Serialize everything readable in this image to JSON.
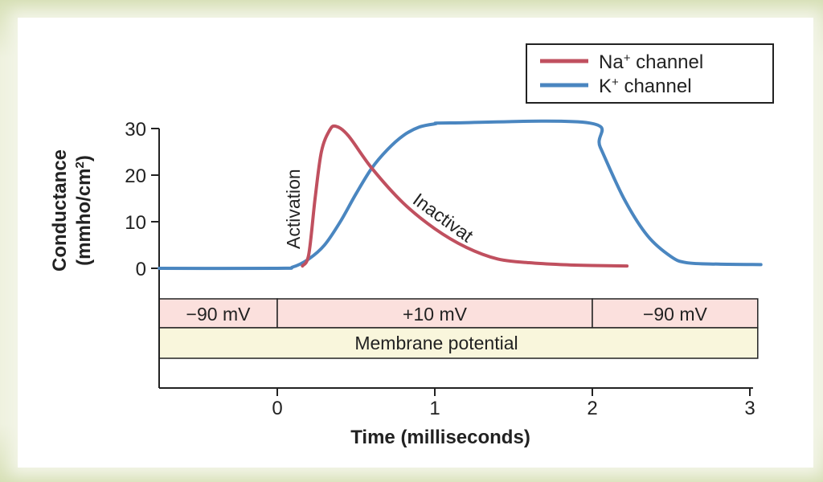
{
  "chart_data": {
    "type": "line",
    "xlabel": "Time (milliseconds)",
    "ylabel": "Conductance",
    "ylabel_units": "(mmho/cm",
    "ylabel_units_sup": "2",
    "ylabel_units_close": ")",
    "xlim": [
      -0.75,
      3.1
    ],
    "ylim": [
      0,
      30
    ],
    "xticks": [
      0,
      1,
      2,
      3
    ],
    "yticks": [
      0,
      10,
      20,
      30
    ],
    "grid": false,
    "legend_placement": "top-right",
    "series": [
      {
        "name": "Na",
        "name_sup": "+",
        "name_suffix": " channel",
        "color": "#c0505f",
        "points": [
          [
            0.16,
            0.5
          ],
          [
            0.2,
            3
          ],
          [
            0.24,
            15
          ],
          [
            0.28,
            25
          ],
          [
            0.33,
            29.5
          ],
          [
            0.37,
            30.5
          ],
          [
            0.45,
            28.5
          ],
          [
            0.6,
            21.5
          ],
          [
            0.8,
            14
          ],
          [
            1.0,
            8.5
          ],
          [
            1.2,
            4.5
          ],
          [
            1.4,
            2
          ],
          [
            1.6,
            1.2
          ],
          [
            1.8,
            0.8
          ],
          [
            2.0,
            0.6
          ],
          [
            2.22,
            0.5
          ]
        ]
      },
      {
        "name": "K",
        "name_sup": "+",
        "name_suffix": " channel",
        "color": "#4a86c0",
        "points": [
          [
            -0.75,
            0
          ],
          [
            0,
            0
          ],
          [
            0.1,
            0.3
          ],
          [
            0.2,
            2
          ],
          [
            0.3,
            5
          ],
          [
            0.4,
            10
          ],
          [
            0.5,
            16
          ],
          [
            0.6,
            21.5
          ],
          [
            0.7,
            25.5
          ],
          [
            0.8,
            28.5
          ],
          [
            0.9,
            30.3
          ],
          [
            1.0,
            31
          ],
          [
            1.1,
            31.2
          ],
          [
            1.98,
            31.2
          ],
          [
            2.05,
            26
          ],
          [
            2.2,
            15
          ],
          [
            2.35,
            7
          ],
          [
            2.5,
            2.5
          ],
          [
            2.6,
            1.2
          ],
          [
            2.8,
            0.9
          ],
          [
            3.07,
            0.8
          ]
        ]
      }
    ],
    "annotations": {
      "activation": "Activation",
      "inactivation": "Inactivat"
    },
    "membrane_potential": {
      "label": "Membrane potential",
      "segments": [
        {
          "from": -0.75,
          "to": 0,
          "label": "−90 mV"
        },
        {
          "from": 0,
          "to": 2,
          "label": "+10 mV"
        },
        {
          "from": 2,
          "to": 3.05,
          "label": "−90 mV"
        }
      ],
      "voltage_color": "#fbe0dd",
      "label_color": "#f9f6dc"
    }
  }
}
